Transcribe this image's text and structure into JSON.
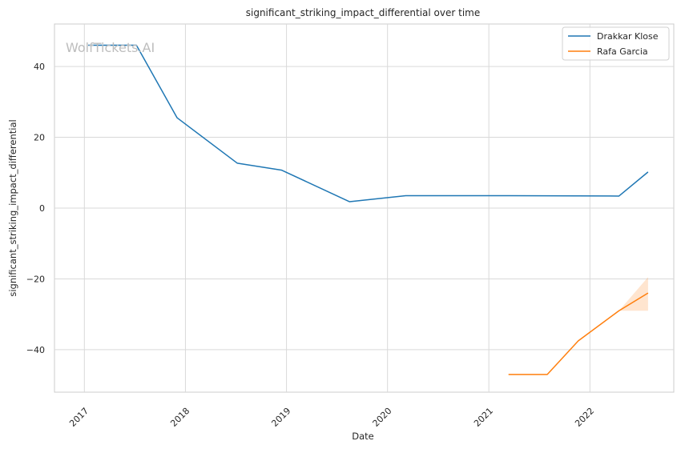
{
  "chart_data": {
    "type": "line",
    "title": "significant_striking_impact_differential over time",
    "xlabel": "Date",
    "ylabel": "significant_striking_impact_differential",
    "watermark": "WolfTickets.AI",
    "x_axis_type": "date",
    "xlim": [
      "2016-09-15",
      "2022-10-31"
    ],
    "ylim": [
      -52,
      52
    ],
    "x_ticks": [
      {
        "label": "2017",
        "date": "2017-01-01"
      },
      {
        "label": "2018",
        "date": "2018-01-01"
      },
      {
        "label": "2019",
        "date": "2019-01-01"
      },
      {
        "label": "2020",
        "date": "2020-01-01"
      },
      {
        "label": "2021",
        "date": "2021-01-01"
      },
      {
        "label": "2022",
        "date": "2022-01-01"
      }
    ],
    "y_ticks": [
      {
        "label": "40",
        "value": 40
      },
      {
        "label": "20",
        "value": 20
      },
      {
        "label": "0",
        "value": 0
      },
      {
        "label": "−20",
        "value": -20
      },
      {
        "label": "−40",
        "value": -40
      }
    ],
    "grid": true,
    "legend_position": "top-right",
    "series": [
      {
        "name": "Drakkar Klose",
        "color": "#1f77b4",
        "points": [
          {
            "x": "2017-01-15",
            "y": 46.0
          },
          {
            "x": "2017-07-08",
            "y": 46.0
          },
          {
            "x": "2017-12-02",
            "y": 25.5
          },
          {
            "x": "2018-07-07",
            "y": 12.7
          },
          {
            "x": "2018-12-15",
            "y": 10.7
          },
          {
            "x": "2019-08-17",
            "y": 1.8
          },
          {
            "x": "2020-03-07",
            "y": 3.5
          },
          {
            "x": "2021-02-06",
            "y": 3.5
          },
          {
            "x": "2022-04-16",
            "y": 3.4
          },
          {
            "x": "2022-07-30",
            "y": 10.2
          }
        ]
      },
      {
        "name": "Rafa Garcia",
        "color": "#ff7f0e",
        "points": [
          {
            "x": "2021-03-13",
            "y": -47.0
          },
          {
            "x": "2021-07-31",
            "y": -47.0
          },
          {
            "x": "2021-11-20",
            "y": -37.5
          },
          {
            "x": "2022-04-16",
            "y": -29.0
          },
          {
            "x": "2022-07-30",
            "y": -24.0
          }
        ],
        "band": [
          {
            "x": "2022-04-16",
            "low": -29.0,
            "high": -29.0
          },
          {
            "x": "2022-07-30",
            "low": -29.0,
            "high": -19.5
          }
        ]
      }
    ]
  }
}
